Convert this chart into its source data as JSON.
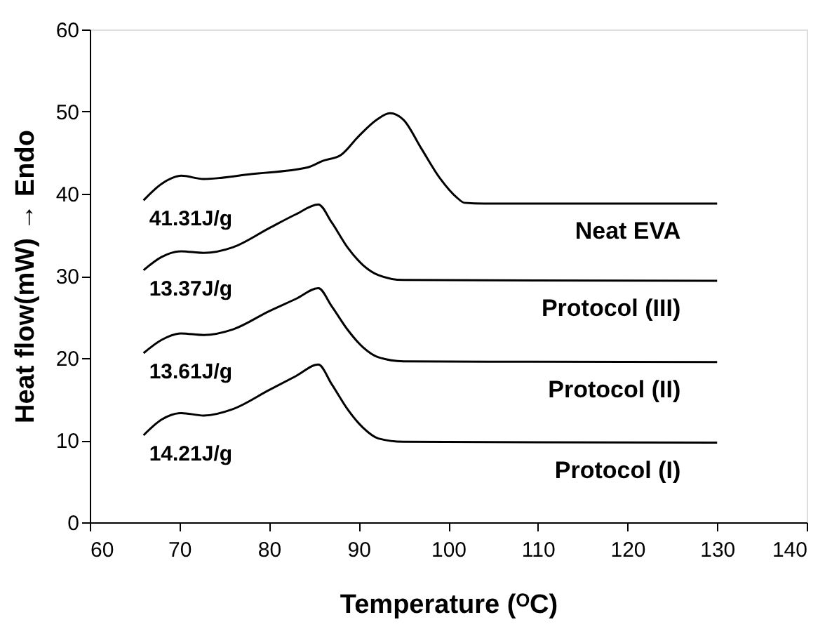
{
  "chart_data": {
    "type": "line",
    "xlabel": "Temperature (ᴼC)",
    "ylabel": "Heat flow(mW) → Endo",
    "xlim": [
      60,
      140
    ],
    "xticks": [
      60,
      70,
      80,
      90,
      100,
      110,
      120,
      130,
      140
    ],
    "ylim": [
      0,
      60
    ],
    "yticks": [
      0,
      10,
      20,
      30,
      40,
      50,
      60
    ],
    "grid": false,
    "legend": false,
    "marker": "none",
    "line_style": "solid",
    "series": [
      {
        "name": "Neat EVA",
        "color": "#000000",
        "x": [
          66,
          68,
          70.2,
          72.7,
          78,
          84.3,
          86,
          88,
          90,
          92,
          93.5,
          95,
          97,
          99,
          101,
          101.8,
          104,
          130
        ],
        "values": [
          39.2,
          41.2,
          42.2,
          41.8,
          42.4,
          43.2,
          44.0,
          44.7,
          47.0,
          49.0,
          49.8,
          49.0,
          45.5,
          42.0,
          39.5,
          38.9,
          38.8,
          38.8
        ]
      },
      {
        "name": "Protocol (III)",
        "color": "#000000",
        "x": [
          66,
          68,
          70.2,
          72.7,
          76,
          80,
          83,
          85.5,
          87,
          88.8,
          90.5,
          92.2,
          95,
          130
        ],
        "values": [
          30.7,
          32.3,
          33.0,
          32.8,
          33.5,
          35.8,
          37.5,
          38.7,
          36.5,
          33.4,
          31.3,
          30.1,
          29.5,
          29.4
        ]
      },
      {
        "name": "Protocol (II)",
        "color": "#000000",
        "x": [
          66,
          68,
          70.2,
          72.7,
          76,
          80,
          83,
          85.5,
          87,
          88.8,
          90.5,
          92.2,
          95,
          130
        ],
        "values": [
          20.6,
          22.2,
          23.0,
          22.8,
          23.5,
          25.7,
          27.2,
          28.5,
          26.3,
          23.4,
          21.3,
          20.1,
          19.6,
          19.5
        ]
      },
      {
        "name": "Protocol (I)",
        "color": "#000000",
        "x": [
          66,
          68,
          70.2,
          72.7,
          76,
          80,
          83,
          85.5,
          87,
          88.8,
          90.5,
          92.2,
          95,
          130
        ],
        "values": [
          10.6,
          12.5,
          13.3,
          13.0,
          13.8,
          16.1,
          17.8,
          19.2,
          16.8,
          13.7,
          11.5,
          10.2,
          9.8,
          9.7
        ]
      }
    ],
    "annotations": [
      "41.31J/g",
      "13.37J/g",
      "13.61J/g",
      "14.21J/g"
    ]
  }
}
